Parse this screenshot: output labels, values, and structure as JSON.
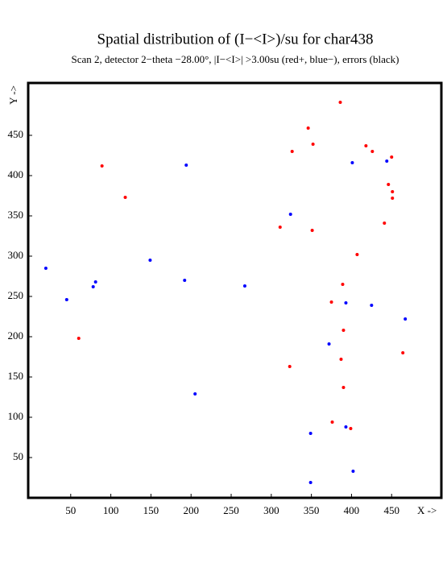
{
  "chart_data": {
    "type": "scatter",
    "title": "Spatial distribution of (I−<I>)/su for char438",
    "subtitle": "Scan  2, detector 2−theta −28.00°, |I−<I>| >3.00su (red+, blue−), errors (black)",
    "x_label": "X ->",
    "y_label": "Y ->",
    "xlim": [
      -3,
      512
    ],
    "ylim": [
      0,
      515
    ],
    "xticks": [
      50,
      100,
      150,
      200,
      250,
      300,
      350,
      400,
      450
    ],
    "yticks": [
      50,
      100,
      150,
      200,
      250,
      300,
      350,
      400,
      450
    ],
    "series": [
      {
        "color": "#ff0000",
        "x": [
          386,
          346,
          352,
          326,
          418,
          426,
          450,
          89,
          118,
          446,
          451,
          451,
          441,
          311,
          351,
          407,
          389,
          375,
          390,
          60,
          464,
          387,
          323,
          390,
          376,
          399
        ],
        "y": [
          491,
          459,
          439,
          430,
          437,
          430,
          423,
          412,
          373,
          389,
          380,
          372,
          341,
          336,
          332,
          302,
          265,
          243,
          208,
          198,
          180,
          172,
          163,
          137,
          94,
          86
        ]
      },
      {
        "color": "#0000ff",
        "x": [
          194,
          401,
          444,
          324,
          19,
          149,
          81,
          78,
          192,
          267,
          45,
          393,
          425,
          467,
          372,
          205,
          393,
          349,
          402,
          349
        ],
        "y": [
          413,
          416,
          418,
          352,
          285,
          295,
          268,
          262,
          270,
          263,
          246,
          242,
          239,
          222,
          191,
          129,
          88,
          80,
          33,
          19
        ]
      }
    ]
  }
}
